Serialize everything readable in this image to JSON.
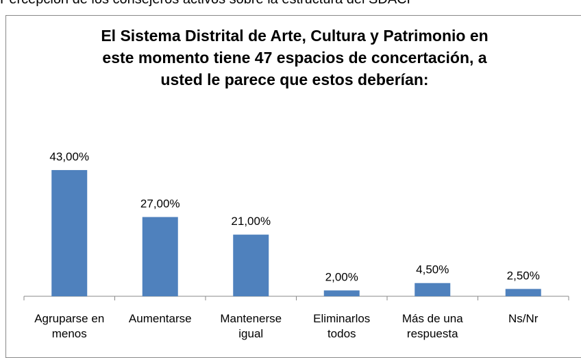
{
  "caption": "Percepción de los consejeros activos sobre la estructura del SDACP",
  "chart_data": {
    "type": "bar",
    "title": "El Sistema Distrital de Arte, Cultura y Patrimonio en este momento tiene 47 espacios de concertación, a usted le parece que estos deberían:",
    "categories": [
      "Agruparse en menos",
      "Aumentarse",
      "Mantenerse igual",
      "Eliminarlos todos",
      "Más de una respuesta",
      "Ns/Nr"
    ],
    "values": [
      43,
      27,
      21,
      2,
      4.5,
      2.5
    ],
    "value_labels": [
      "43,00%",
      "27,00%",
      "21,00%",
      "2,00%",
      "4,50%",
      "2,50%"
    ],
    "color": "#4f81bd",
    "ylim": [
      0,
      50
    ]
  }
}
